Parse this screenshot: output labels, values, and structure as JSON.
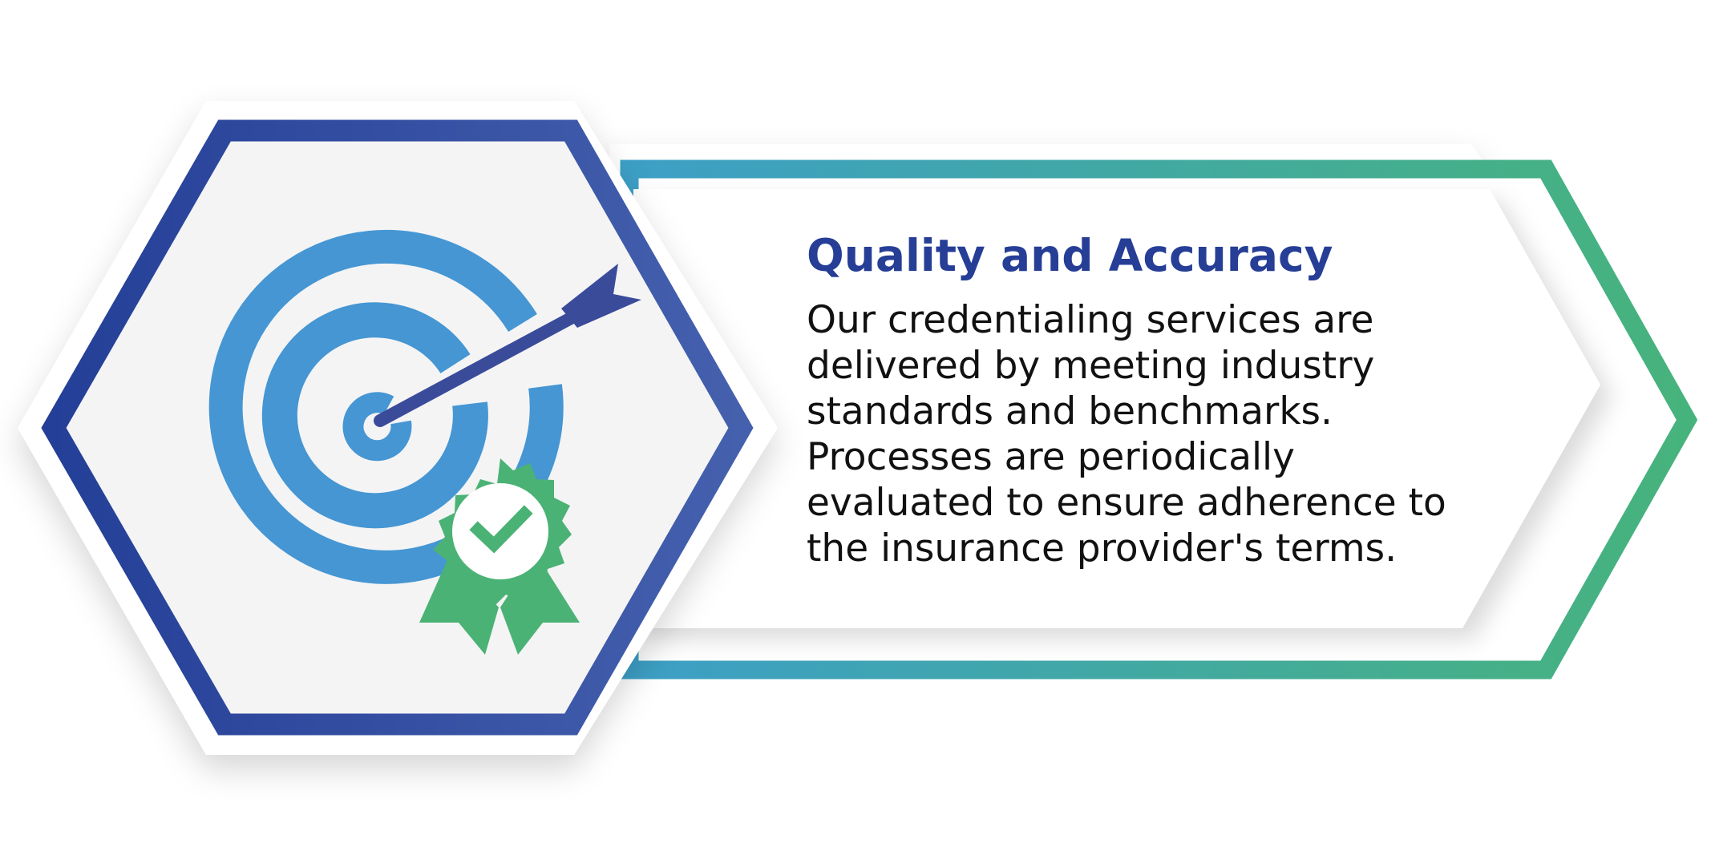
{
  "infographic": {
    "title": "Quality and Accuracy",
    "body_lines": [
      "Our credentialing services are",
      "delivered by meeting industry",
      "standards and benchmarks.",
      "Processes are periodically",
      "evaluated to ensure adherence to",
      "the insurance provider's terms."
    ]
  },
  "icons": {
    "main": "target-with-arrow-icon",
    "badge": "award-ribbon-checkmark-icon"
  },
  "colors": {
    "hex_border_start": "#243f97",
    "hex_border_end": "#4560ad",
    "banner_border_start": "#3d9fc6",
    "banner_border_end": "#47b37c",
    "title": "#263e96",
    "target_blue": "#4596d3",
    "arrow_navy": "#3a4b9a",
    "badge_green": "#4bb275",
    "panel_fill": "#f4f4f5"
  }
}
